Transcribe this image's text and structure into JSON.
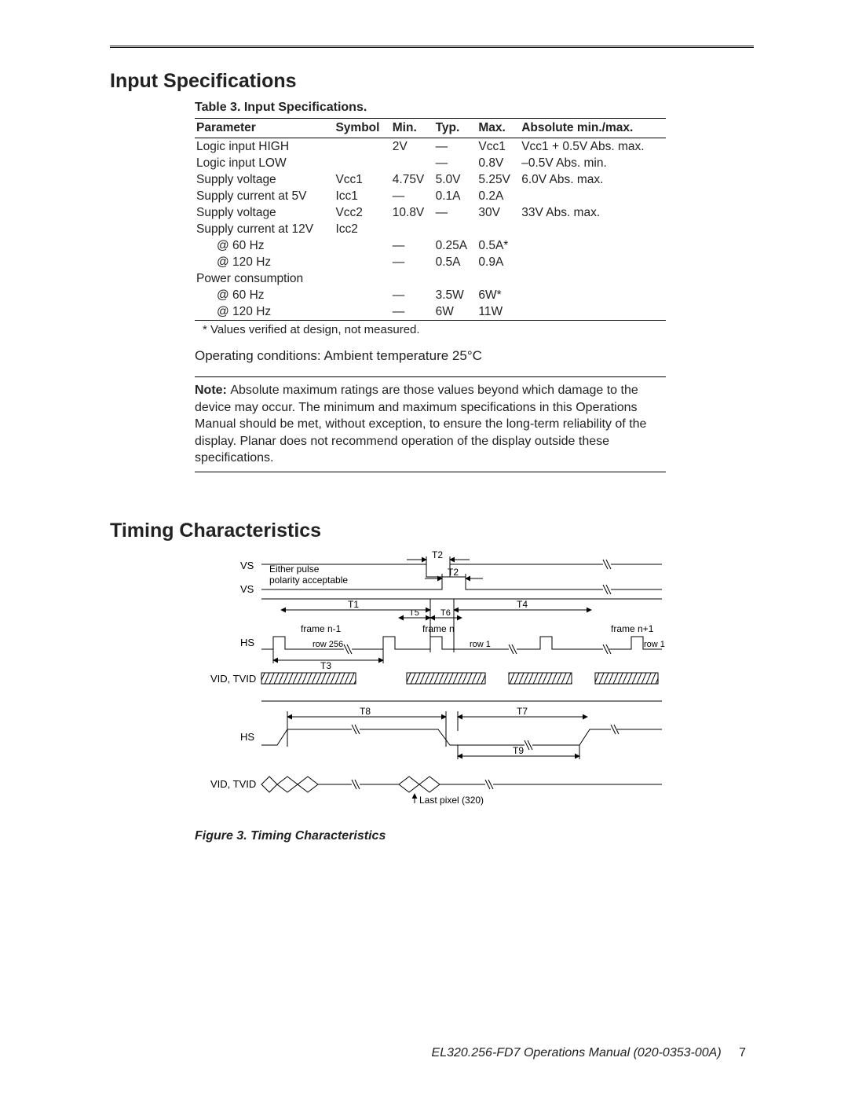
{
  "section1_title": "Input Specifications",
  "table_caption": "Table 3. Input Specifications.",
  "columns": [
    "Parameter",
    "Symbol",
    "Min.",
    "Typ.",
    "Max.",
    "Absolute min./max."
  ],
  "rows": [
    {
      "p": "Logic input HIGH",
      "s": "",
      "mn": "2V",
      "ty": "—",
      "mx": "Vcc1",
      "abs": "Vcc1 + 0.5V Abs. max."
    },
    {
      "p": "Logic input LOW",
      "s": "",
      "mn": "",
      "ty": "—",
      "mx": "0.8V",
      "abs": "–0.5V Abs. min."
    },
    {
      "p": "Supply voltage",
      "s": "Vcc1",
      "mn": "4.75V",
      "ty": "5.0V",
      "mx": "5.25V",
      "abs": "6.0V Abs. max."
    },
    {
      "p": "Supply current at 5V",
      "s": "Icc1",
      "mn": "—",
      "ty": "0.1A",
      "mx": "0.2A",
      "abs": ""
    },
    {
      "p": "Supply voltage",
      "s": "Vcc2",
      "mn": "10.8V",
      "ty": "—",
      "mx": "30V",
      "abs": "33V Abs. max."
    },
    {
      "p": "Supply current at 12V",
      "s": "Icc2",
      "mn": "",
      "ty": "",
      "mx": "",
      "abs": ""
    },
    {
      "p": "@ 60 Hz",
      "indent": true,
      "s": "",
      "mn": "—",
      "ty": "0.25A",
      "mx": "0.5A*",
      "abs": ""
    },
    {
      "p": "@ 120 Hz",
      "indent": true,
      "s": "",
      "mn": "—",
      "ty": "0.5A",
      "mx": "0.9A",
      "abs": ""
    },
    {
      "p": "Power consumption",
      "s": "",
      "mn": "",
      "ty": "",
      "mx": "",
      "abs": ""
    },
    {
      "p": "@ 60 Hz",
      "indent": true,
      "s": "",
      "mn": "—",
      "ty": "3.5W",
      "mx": "6W*",
      "abs": ""
    },
    {
      "p": "@ 120 Hz",
      "indent": true,
      "s": "",
      "mn": "—",
      "ty": "6W",
      "mx": "11W",
      "abs": ""
    }
  ],
  "footnote": "* Values verified at design, not measured.",
  "op_cond": "Operating conditions: Ambient temperature 25°C",
  "note_label": "Note:",
  "note_body": "Absolute maximum ratings are those values beyond which damage to the device may occur. The minimum and maximum specifications in this Operations Manual should be met, without exception, to ensure the long-term reliability of the display. Planar does not recommend operation of the display outside these specifications.",
  "section2_title": "Timing Characteristics",
  "fig_caption": "Figure 3. Timing Characteristics",
  "diagram": {
    "labels": {
      "vs": "VS",
      "hs": "HS",
      "vid": "VID, TVID",
      "either": "Either pulse",
      "polarity": "polarity acceptable",
      "t1": "T1",
      "t2": "T2",
      "t3": "T3",
      "t4": "T4",
      "t5": "T5",
      "t6": "T6",
      "t7": "T7",
      "t8": "T8",
      "t9": "T9",
      "frame_nm1": "frame n-1",
      "frame_n": "frame n",
      "frame_np1": "frame n+1",
      "row256": "row 256",
      "row1": "row 1",
      "row1b": "row 1",
      "last_pixel": "Last pixel (320)"
    }
  },
  "footer_text": "EL320.256-FD7 Operations Manual (020-0353-00A)",
  "page_number": "7"
}
